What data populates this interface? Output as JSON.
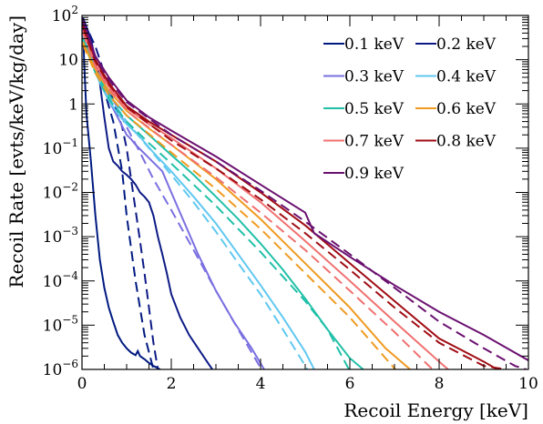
{
  "chart_data": {
    "type": "line",
    "xlabel": "Recoil Energy [keV]",
    "ylabel": "Recoil Rate [evts/keV/kg/day]",
    "xlim": [
      0,
      10
    ],
    "ylim": [
      1e-06,
      100
    ],
    "yscale": "log",
    "x_ticks": [
      0,
      2,
      4,
      6,
      8,
      10
    ],
    "y_ticks": [
      {
        "value": 1e-06,
        "base": "10",
        "exp": "−6"
      },
      {
        "value": 1e-05,
        "base": "10",
        "exp": "−5"
      },
      {
        "value": 0.0001,
        "base": "10",
        "exp": "−4"
      },
      {
        "value": 0.001,
        "base": "10",
        "exp": "−3"
      },
      {
        "value": 0.01,
        "base": "10",
        "exp": "−2"
      },
      {
        "value": 0.1,
        "base": "10",
        "exp": "−1"
      },
      {
        "value": 1,
        "base": "1",
        "exp": ""
      },
      {
        "value": 10,
        "base": "10",
        "exp": ""
      },
      {
        "value": 100,
        "base": "10",
        "exp": "2"
      }
    ],
    "grid": false,
    "legend_position": "top-right",
    "series": [
      {
        "name": "0.1 keV",
        "color": "#001a80",
        "solid": [
          [
            0.02,
            70
          ],
          [
            0.05,
            8
          ],
          [
            0.1,
            0.6
          ],
          [
            0.2,
            0.05
          ],
          [
            0.3,
            0.003
          ],
          [
            0.4,
            0.0003
          ],
          [
            0.5,
            7e-05
          ],
          [
            0.6,
            2.5e-05
          ],
          [
            0.7,
            1.2e-05
          ],
          [
            0.8,
            6e-06
          ],
          [
            0.9,
            4e-06
          ],
          [
            1.0,
            3e-06
          ],
          [
            1.1,
            2.4e-06
          ],
          [
            1.2,
            2.1e-06
          ],
          [
            1.25,
            2.6e-06
          ],
          [
            1.3,
            2e-06
          ],
          [
            1.4,
            1.7e-06
          ],
          [
            1.5,
            1.4e-06
          ],
          [
            1.6,
            1.2e-06
          ],
          [
            1.75,
            1e-06
          ]
        ],
        "dashed": [
          [
            0.02,
            60
          ],
          [
            0.3,
            8
          ],
          [
            0.5,
            2
          ],
          [
            0.7,
            0.4
          ],
          [
            0.9,
            0.03
          ],
          [
            1.0,
            0.003
          ],
          [
            1.2,
            0.0001
          ],
          [
            1.4,
            6e-06
          ],
          [
            1.6,
            1e-06
          ]
        ]
      },
      {
        "name": "0.2 keV",
        "color": "#0d1a85",
        "solid": [
          [
            0.02,
            90
          ],
          [
            0.2,
            30
          ],
          [
            0.4,
            3
          ],
          [
            0.5,
            0.5
          ],
          [
            0.6,
            0.1
          ],
          [
            0.7,
            0.05
          ],
          [
            0.8,
            0.04
          ],
          [
            0.9,
            0.03
          ],
          [
            1.0,
            0.025
          ],
          [
            1.1,
            0.02
          ],
          [
            1.2,
            0.015
          ],
          [
            1.3,
            0.01
          ],
          [
            1.4,
            0.008
          ],
          [
            1.5,
            0.006
          ],
          [
            1.6,
            0.003
          ],
          [
            1.7,
            0.001
          ],
          [
            1.8,
            0.0004
          ],
          [
            1.9,
            0.00015
          ],
          [
            2.0,
            5e-05
          ],
          [
            2.2,
            1.5e-05
          ],
          [
            2.4,
            6e-06
          ],
          [
            2.6,
            3e-06
          ],
          [
            2.8,
            1.5e-06
          ],
          [
            2.92,
            1e-06
          ]
        ],
        "dashed": [
          [
            0.02,
            80
          ],
          [
            0.3,
            20
          ],
          [
            0.5,
            5
          ],
          [
            0.7,
            1.2
          ],
          [
            0.9,
            0.3
          ],
          [
            1.0,
            0.1
          ],
          [
            1.1,
            0.02
          ],
          [
            1.2,
            0.004
          ],
          [
            1.3,
            0.0008
          ],
          [
            1.4,
            0.00015
          ],
          [
            1.5,
            2.5e-05
          ],
          [
            1.6,
            4e-06
          ],
          [
            1.7,
            1e-06
          ]
        ]
      },
      {
        "name": "0.3 keV",
        "color": "#7a6fe0",
        "solid": [
          [
            0.02,
            55
          ],
          [
            0.2,
            12
          ],
          [
            0.4,
            3
          ],
          [
            0.6,
            1.2
          ],
          [
            0.8,
            0.5
          ],
          [
            1.0,
            0.2
          ],
          [
            1.1,
            0.16
          ],
          [
            1.2,
            0.12
          ],
          [
            1.5,
            0.06
          ],
          [
            1.8,
            0.03
          ],
          [
            2.0,
            0.01
          ],
          [
            2.3,
            0.002
          ],
          [
            2.6,
            0.0004
          ],
          [
            3.0,
            6e-05
          ],
          [
            3.4,
            1.2e-05
          ],
          [
            3.8,
            3e-06
          ],
          [
            4.08,
            1e-06
          ]
        ],
        "dashed": [
          [
            0.02,
            50
          ],
          [
            0.2,
            12
          ],
          [
            0.5,
            3
          ],
          [
            0.8,
            0.8
          ],
          [
            1.0,
            0.3
          ],
          [
            1.3,
            0.08
          ],
          [
            1.6,
            0.02
          ],
          [
            2.0,
            0.004
          ],
          [
            2.5,
            0.0005
          ],
          [
            3.0,
            6e-05
          ],
          [
            3.5,
            8e-06
          ],
          [
            4.02,
            1e-06
          ]
        ]
      },
      {
        "name": "0.4 keV",
        "color": "#60c8f0",
        "solid": [
          [
            0.02,
            40
          ],
          [
            0.2,
            10
          ],
          [
            0.4,
            3
          ],
          [
            0.6,
            1.2
          ],
          [
            0.8,
            0.6
          ],
          [
            1.0,
            0.35
          ],
          [
            1.3,
            0.18
          ],
          [
            1.6,
            0.08
          ],
          [
            2.0,
            0.03
          ],
          [
            2.5,
            0.008
          ],
          [
            3.0,
            0.002
          ],
          [
            3.5,
            0.0004
          ],
          [
            4.0,
            8e-05
          ],
          [
            4.5,
            1.5e-05
          ],
          [
            5.0,
            2.5e-06
          ],
          [
            5.2,
            1e-06
          ]
        ],
        "dashed": [
          [
            0.02,
            35
          ],
          [
            0.3,
            6
          ],
          [
            0.6,
            1.5
          ],
          [
            1.0,
            0.4
          ],
          [
            1.5,
            0.1
          ],
          [
            2.0,
            0.025
          ],
          [
            2.5,
            0.006
          ],
          [
            3.0,
            0.0013
          ],
          [
            3.5,
            0.00025
          ],
          [
            4.0,
            5e-05
          ],
          [
            4.5,
            8e-06
          ],
          [
            5.05,
            1e-06
          ]
        ]
      },
      {
        "name": "0.5 keV",
        "color": "#20c0a8",
        "solid": [
          [
            0.02,
            30
          ],
          [
            0.3,
            6
          ],
          [
            0.6,
            1.6
          ],
          [
            1.0,
            0.55
          ],
          [
            1.5,
            0.2
          ],
          [
            2.0,
            0.07
          ],
          [
            2.5,
            0.025
          ],
          [
            3.0,
            0.008
          ],
          [
            3.5,
            0.0025
          ],
          [
            4.0,
            0.0007
          ],
          [
            4.5,
            0.00018
          ],
          [
            5.0,
            4e-05
          ],
          [
            5.5,
            8e-06
          ],
          [
            6.0,
            1.8e-06
          ],
          [
            6.3,
            1e-06
          ]
        ],
        "dashed": [
          [
            0.02,
            28
          ],
          [
            0.3,
            5
          ],
          [
            0.6,
            1.3
          ],
          [
            1.0,
            0.4
          ],
          [
            1.5,
            0.13
          ],
          [
            2.0,
            0.045
          ],
          [
            3.0,
            0.005
          ],
          [
            4.0,
            0.00045
          ],
          [
            5.0,
            3.5e-05
          ],
          [
            5.5,
            8e-06
          ],
          [
            5.98,
            1e-06
          ]
        ]
      },
      {
        "name": "0.6 keV",
        "color": "#f09a20",
        "solid": [
          [
            0.02,
            25
          ],
          [
            0.3,
            6
          ],
          [
            0.6,
            2
          ],
          [
            1.0,
            0.7
          ],
          [
            1.5,
            0.28
          ],
          [
            2.0,
            0.12
          ],
          [
            3.0,
            0.02
          ],
          [
            4.0,
            0.0025
          ],
          [
            5.0,
            0.00025
          ],
          [
            6.0,
            2.5e-05
          ],
          [
            6.8,
            3e-06
          ],
          [
            7.35,
            1e-06
          ]
        ],
        "dashed": [
          [
            0.02,
            22
          ],
          [
            0.3,
            5
          ],
          [
            0.6,
            1.6
          ],
          [
            1.0,
            0.55
          ],
          [
            2.0,
            0.08
          ],
          [
            3.0,
            0.012
          ],
          [
            4.0,
            0.0015
          ],
          [
            5.0,
            0.00015
          ],
          [
            6.0,
            1.5e-05
          ],
          [
            7.02,
            1e-06
          ]
        ]
      },
      {
        "name": "0.7 keV",
        "color": "#f07070",
        "solid": [
          [
            0.02,
            45
          ],
          [
            0.3,
            8
          ],
          [
            0.6,
            2.5
          ],
          [
            1.0,
            0.8
          ],
          [
            1.5,
            0.35
          ],
          [
            2.0,
            0.17
          ],
          [
            3.0,
            0.035
          ],
          [
            4.0,
            0.006
          ],
          [
            5.0,
            0.0008
          ],
          [
            6.0,
            0.0001
          ],
          [
            7.0,
            1.2e-05
          ],
          [
            8.0,
            1.5e-06
          ],
          [
            8.2,
            1e-06
          ]
        ],
        "dashed": [
          [
            0.02,
            40
          ],
          [
            0.3,
            7
          ],
          [
            0.6,
            2.2
          ],
          [
            1.0,
            0.7
          ],
          [
            2.0,
            0.12
          ],
          [
            3.0,
            0.022
          ],
          [
            4.0,
            0.0035
          ],
          [
            5.0,
            0.0005
          ],
          [
            6.0,
            6e-05
          ],
          [
            7.0,
            7e-06
          ],
          [
            7.85,
            1e-06
          ]
        ]
      },
      {
        "name": "0.8 keV",
        "color": "#a00c14",
        "solid": [
          [
            0.02,
            60
          ],
          [
            0.3,
            10
          ],
          [
            0.6,
            3
          ],
          [
            1.0,
            0.9
          ],
          [
            1.5,
            0.4
          ],
          [
            2.0,
            0.2
          ],
          [
            3.0,
            0.05
          ],
          [
            4.0,
            0.01
          ],
          [
            5.0,
            0.0018
          ],
          [
            6.0,
            0.00025
          ],
          [
            7.0,
            3.5e-05
          ],
          [
            8.0,
            5e-06
          ],
          [
            9.0,
            1.5e-06
          ],
          [
            9.3,
            1e-06
          ]
        ],
        "dashed": [
          [
            0.02,
            55
          ],
          [
            0.3,
            9
          ],
          [
            0.6,
            2.8
          ],
          [
            1.0,
            0.85
          ],
          [
            2.0,
            0.15
          ],
          [
            3.0,
            0.035
          ],
          [
            4.0,
            0.007
          ],
          [
            5.0,
            0.0012
          ],
          [
            6.0,
            0.00018
          ],
          [
            7.0,
            2.5e-05
          ],
          [
            8.0,
            4e-06
          ],
          [
            9.0,
            1.2e-06
          ],
          [
            9.5,
            1e-06
          ]
        ]
      },
      {
        "name": "0.9 keV",
        "color": "#6a1070",
        "solid": [
          [
            0.02,
            80
          ],
          [
            0.3,
            12
          ],
          [
            0.6,
            4
          ],
          [
            1.0,
            1.2
          ],
          [
            1.5,
            0.5
          ],
          [
            2.0,
            0.25
          ],
          [
            3.0,
            0.065
          ],
          [
            4.0,
            0.015
          ],
          [
            5.0,
            0.0035
          ],
          [
            5.2,
            0.0012
          ],
          [
            6.0,
            0.00035
          ],
          [
            7.0,
            8e-05
          ],
          [
            8.0,
            2e-05
          ],
          [
            9.0,
            6e-06
          ],
          [
            10.0,
            1.6e-06
          ]
        ],
        "dashed": [
          [
            0.02,
            75
          ],
          [
            0.3,
            11
          ],
          [
            0.6,
            3.5
          ],
          [
            1.0,
            1.1
          ],
          [
            2.0,
            0.2
          ],
          [
            3.0,
            0.05
          ],
          [
            4.0,
            0.011
          ],
          [
            5.0,
            0.0022
          ],
          [
            6.0,
            0.0004
          ],
          [
            7.0,
            7e-05
          ],
          [
            8.0,
            1.2e-05
          ],
          [
            9.0,
            3e-06
          ],
          [
            9.7,
            1.2e-06
          ],
          [
            9.95,
            1e-06
          ]
        ]
      }
    ]
  }
}
